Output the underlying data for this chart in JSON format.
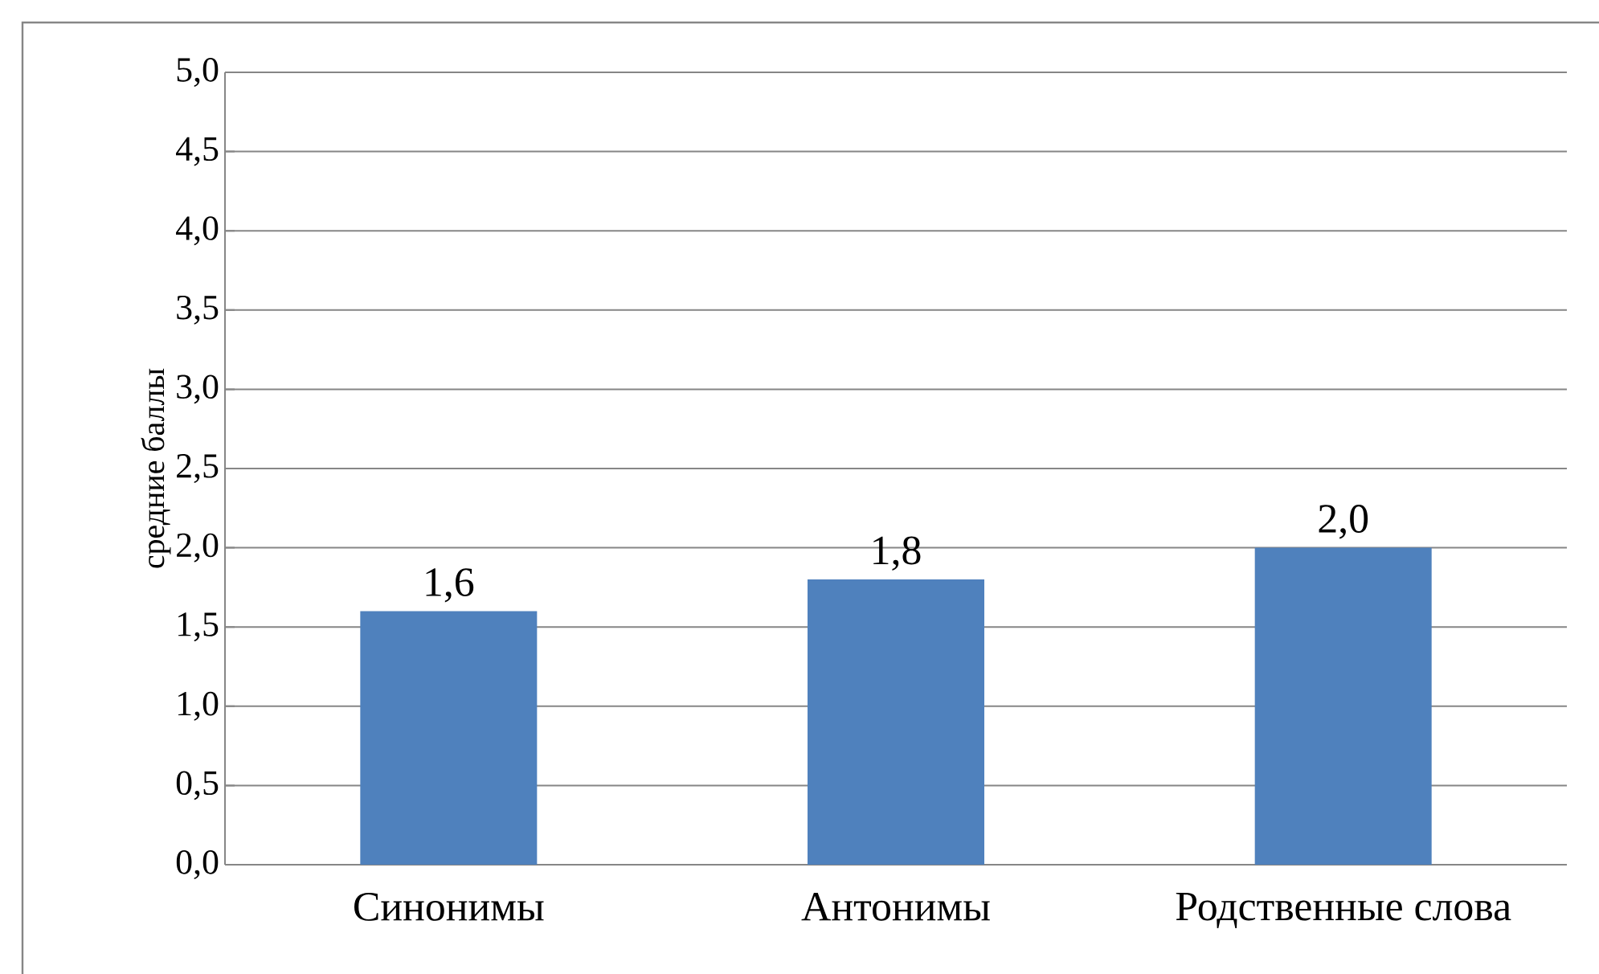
{
  "chart_data": {
    "type": "bar",
    "ylabel": "средние баллы",
    "categories": [
      "Синонимы",
      "Антонимы",
      "Родственные слова"
    ],
    "values": [
      1.6,
      1.8,
      2.0
    ],
    "value_labels": [
      "1,6",
      "1,8",
      "2,0"
    ],
    "color": "#4f81bd",
    "ylim": [
      0,
      5
    ],
    "yticks": [
      {
        "value": 0,
        "label": "0,0"
      },
      {
        "value": 0.5,
        "label": "0,5"
      },
      {
        "value": 1,
        "label": "1,0"
      },
      {
        "value": 1.5,
        "label": "1,5"
      },
      {
        "value": 2,
        "label": "2,0"
      },
      {
        "value": 2.5,
        "label": "2,5"
      },
      {
        "value": 3,
        "label": "3,0"
      },
      {
        "value": 3.5,
        "label": "3,5"
      },
      {
        "value": 4,
        "label": "4,0"
      },
      {
        "value": 4.5,
        "label": "4,5"
      },
      {
        "value": 5,
        "label": "5,0"
      }
    ],
    "grid": true
  }
}
